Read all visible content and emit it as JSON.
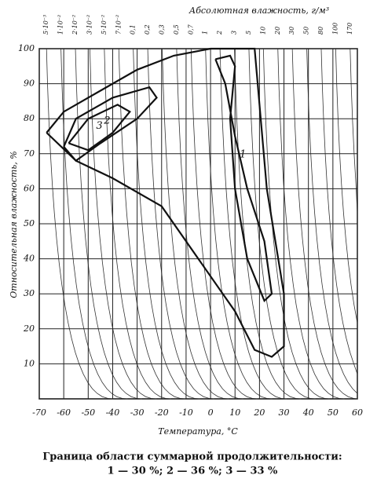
{
  "chart_data": {
    "type": "contour",
    "x_label": "Температура, °С",
    "y_label": "Относительная влажность, %",
    "top_axis_label": "Абсолютная влажность, г/м³",
    "top_tick_labels": [
      "5·10⁻³",
      "1·10⁻²",
      "2·10⁻²",
      "3·10⁻²",
      "5·10⁻²",
      "7·10⁻²",
      "0,1",
      "0,2",
      "0,3",
      "0,5",
      "0,7",
      "1",
      "2",
      "3",
      "5",
      "10",
      "20",
      "30",
      "50",
      "80",
      "100",
      "170"
    ],
    "caption": [
      "Граница области суммарной продолжительности:",
      "1 — 30 %; 2 — 36 %; 3 — 33 %"
    ],
    "xlim": [
      -70,
      60
    ],
    "xticks": [
      -70,
      -60,
      -50,
      -40,
      -30,
      -20,
      -10,
      0,
      10,
      20,
      30,
      40,
      50,
      60
    ],
    "ylim": [
      0,
      100
    ],
    "yticks": [
      10,
      20,
      30,
      40,
      50,
      60,
      70,
      80,
      90,
      100
    ],
    "grid": true,
    "color": "#111111",
    "series": [
      {
        "x": [
          -67,
          -60,
          -45,
          -30,
          -15,
          0,
          18,
          19,
          23,
          30,
          30,
          25,
          18,
          10,
          -5,
          -20,
          -40,
          -55,
          -67
        ],
        "values": [
          76,
          82,
          88,
          94,
          98,
          100,
          100,
          92,
          60,
          30,
          15,
          12,
          14,
          25,
          40,
          55,
          63,
          68,
          76
        ]
      },
      {
        "name": "1",
        "x": [
          2,
          8,
          10,
          8,
          10,
          15,
          22,
          25,
          22,
          15,
          10,
          6,
          2
        ],
        "values": [
          97,
          98,
          95,
          80,
          60,
          40,
          28,
          30,
          45,
          60,
          75,
          90,
          97
        ]
      },
      {
        "name": "2",
        "x": [
          -60,
          -55,
          -40,
          -25,
          -22,
          -30,
          -45,
          -55,
          -60
        ],
        "values": [
          72,
          80,
          86,
          89,
          86,
          80,
          73,
          68,
          72
        ]
      },
      {
        "name": "3",
        "x": [
          -58,
          -50,
          -38,
          -33,
          -40,
          -50,
          -58
        ],
        "values": [
          73,
          80,
          84,
          82,
          76,
          71,
          73
        ]
      }
    ]
  }
}
